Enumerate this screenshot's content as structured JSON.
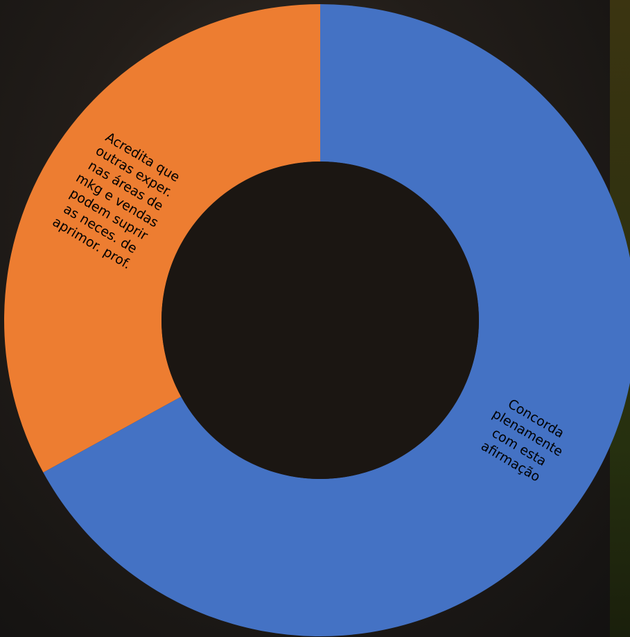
{
  "chart_data": {
    "type": "donut",
    "categories": [
      "Concorda\nplenamente\ncom esta\nafirmação",
      "Acredita que\noutras exper.\nnas áreas de\nmkg e vendas\npodem suprir\nas neces. de\naprimor. prof."
    ],
    "values": [
      67,
      33
    ],
    "colors": [
      "#4472c4",
      "#ed7d31"
    ]
  }
}
